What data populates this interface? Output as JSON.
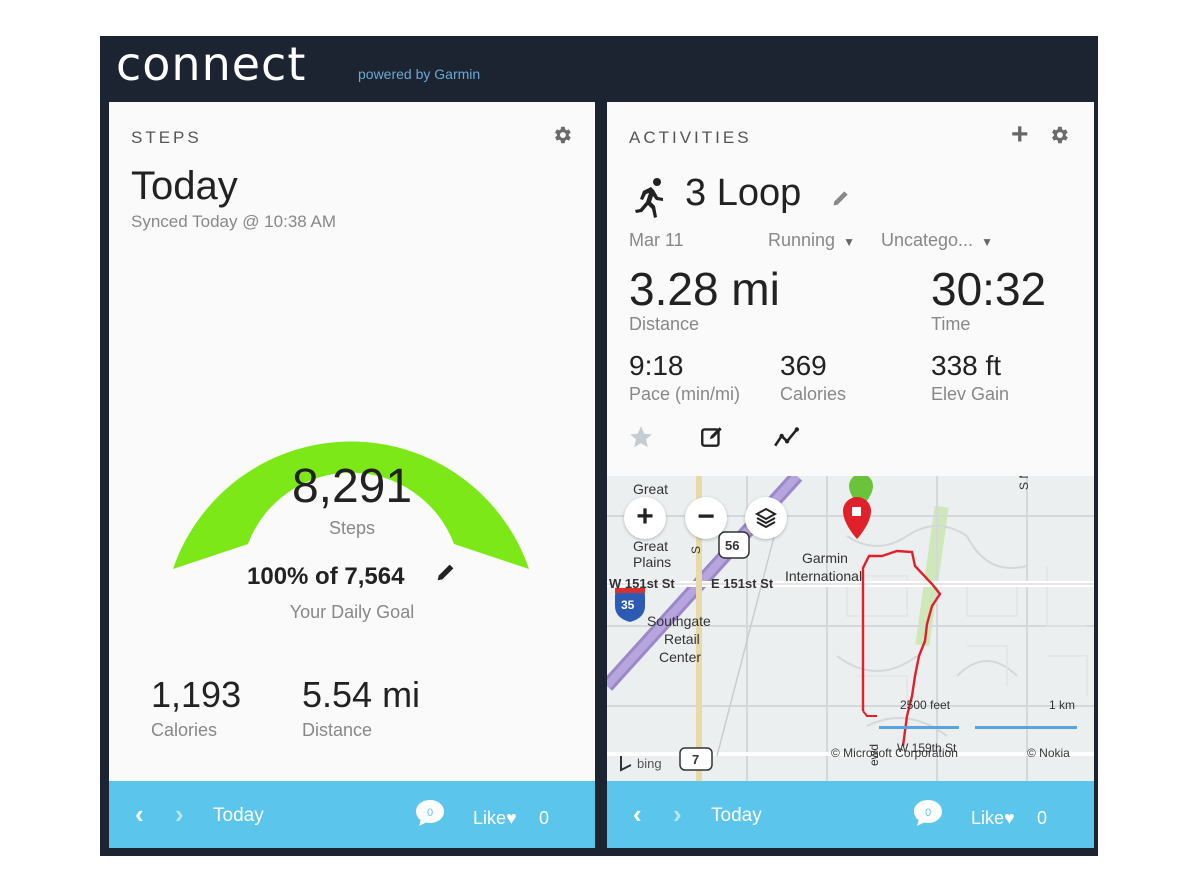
{
  "brand": {
    "logo": "connect",
    "tagline": "powered by Garmin"
  },
  "steps_card": {
    "title": "STEPS",
    "heading": "Today",
    "synced": "Synced Today @ 10:38 AM",
    "gauge_fill_fraction": 1.0,
    "gauge_color": "#7de818",
    "steps": "8,291",
    "steps_label": "Steps",
    "goal_text": "100% of 7,564",
    "goal_label": "Your Daily Goal",
    "calories": "1,193",
    "calories_label": "Calories",
    "distance": "5.54 mi",
    "distance_label": "Distance",
    "icons": [
      "gear-icon",
      "pencil-icon"
    ]
  },
  "activities_card": {
    "title": "ACTIVITIES",
    "activity_name": "3 Loop",
    "date": "Mar 11",
    "type": "Running",
    "category": "Uncatego...",
    "distance": "3.28 mi",
    "distance_label": "Distance",
    "time": "30:32",
    "time_label": "Time",
    "pace": "9:18",
    "pace_label": "Pace (min/mi)",
    "calories": "369",
    "calories_label": "Calories",
    "elev": "338 ft",
    "elev_label": "Elev Gain",
    "icons": [
      "running-icon",
      "plus-icon",
      "gear-icon",
      "star-icon",
      "edit-icon",
      "chart-icon"
    ],
    "map": {
      "labels": {
        "great": "Great",
        "great2": "Great",
        "plains": "Plains",
        "w151": "W 151st St",
        "e151": "E 151st St",
        "garmin": "Garmin",
        "international": "International",
        "southgate": "Southgate",
        "retail": "Retail",
        "center": "Center",
        "smur": "S Mur",
        "scale_feet": "2500 feet",
        "scale_km": "1 km",
        "microsoft": "© Microsoft Corporation",
        "nokia": "© Nokia",
        "bing": "bing",
        "hwy56": "56",
        "hwy35": "35",
        "hwy7": "7",
        "st159": "W 159th St",
        "ewd": "ewd",
        "s_road": "S"
      },
      "zoom_in": "+",
      "zoom_out": "−",
      "route_color": "#e0202b"
    }
  },
  "footer": {
    "day": "Today",
    "comments": "0",
    "like_label": "Like",
    "likes": "0"
  },
  "colors": {
    "frame": "#1b2430",
    "footer": "#5bc5ec",
    "gauge": "#7de818"
  }
}
